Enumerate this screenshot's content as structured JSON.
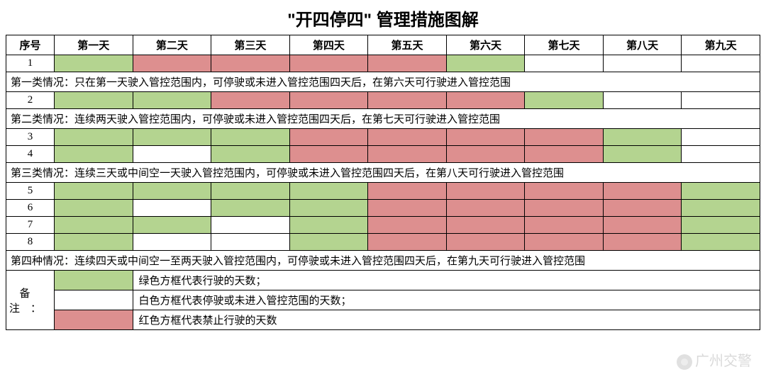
{
  "title": "\"开四停四\" 管理措施图解",
  "colors": {
    "green": "#b4d490",
    "red": "#dd8f8f",
    "white": "#ffffff",
    "border": "#000000"
  },
  "headers": {
    "seq": "序号",
    "days": [
      "第一天",
      "第二天",
      "第三天",
      "第四天",
      "第五天",
      "第六天",
      "第七天",
      "第八天",
      "第九天"
    ]
  },
  "rows": [
    {
      "type": "data",
      "seq": "1",
      "cells": [
        "green",
        "red",
        "red",
        "red",
        "red",
        "green",
        "white",
        "white",
        "white"
      ]
    },
    {
      "type": "desc",
      "text": "第一类情况：只在第一天驶入管控范围内，可停驶或未进入管控范围四天后，在第六天可行驶进入管控范围"
    },
    {
      "type": "data",
      "seq": "2",
      "cells": [
        "green",
        "green",
        "red",
        "red",
        "red",
        "red",
        "green",
        "white",
        "white"
      ]
    },
    {
      "type": "desc",
      "text": "第二类情况：连续两天驶入管控范围内，可停驶或未进入管控范围四天后，在第七天可行驶进入管控范围"
    },
    {
      "type": "data",
      "seq": "3",
      "cells": [
        "green",
        "green",
        "green",
        "red",
        "red",
        "red",
        "red",
        "green",
        "white"
      ]
    },
    {
      "type": "data",
      "seq": "4",
      "cells": [
        "green",
        "white",
        "green",
        "red",
        "red",
        "red",
        "red",
        "green",
        "white"
      ]
    },
    {
      "type": "desc",
      "text": "第三类情况：连续三天或中间空一天驶入管控范围内，可停驶或未进入管控范围四天后，在第八天可行驶进入管控范围"
    },
    {
      "type": "data",
      "seq": "5",
      "cells": [
        "green",
        "green",
        "green",
        "green",
        "red",
        "red",
        "red",
        "red",
        "green"
      ]
    },
    {
      "type": "data",
      "seq": "6",
      "cells": [
        "green",
        "white",
        "green",
        "green",
        "red",
        "red",
        "red",
        "red",
        "green"
      ]
    },
    {
      "type": "data",
      "seq": "7",
      "cells": [
        "green",
        "green",
        "white",
        "green",
        "red",
        "red",
        "red",
        "red",
        "green"
      ]
    },
    {
      "type": "data",
      "seq": "8",
      "cells": [
        "green",
        "white",
        "white",
        "green",
        "red",
        "red",
        "red",
        "red",
        "green"
      ]
    },
    {
      "type": "desc",
      "text": "第四种情况：连续四天或中间空一至两天驶入管控范围内，可停驶或未进入管控范围四天后，在第九天可行驶进入管控范围"
    }
  ],
  "legend": {
    "label": "备注：",
    "items": [
      {
        "color": "green",
        "text": "绿色方框代表行驶的天数；"
      },
      {
        "color": "white",
        "text": "白色方框代表停驶或未进入管控范围的天数；"
      },
      {
        "color": "red",
        "text": "红色方框代表禁止行驶的天数"
      }
    ]
  },
  "watermark": "广州交警"
}
